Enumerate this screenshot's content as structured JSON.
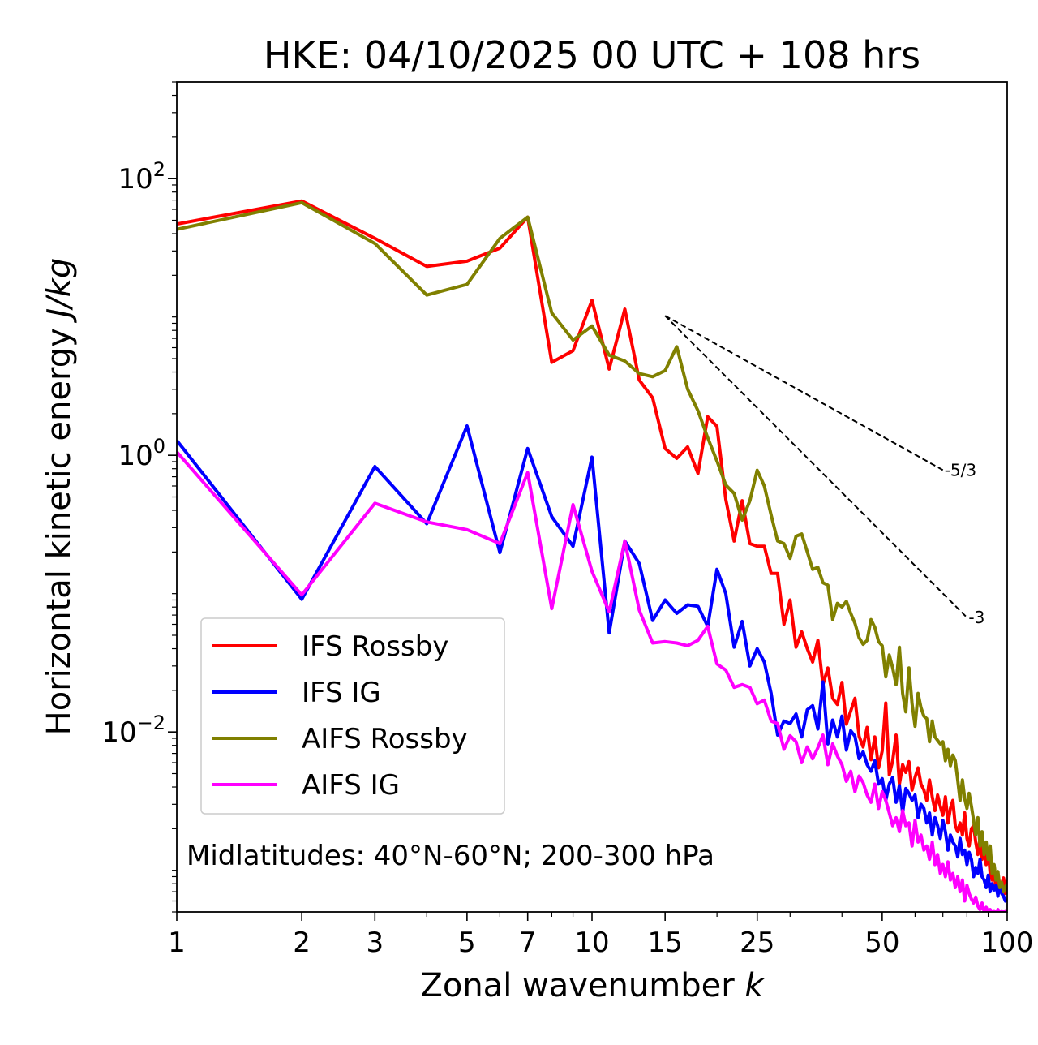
{
  "chart_data": {
    "type": "line",
    "title": "HKE: 04/10/2025 00 UTC + 108 hrs",
    "xlabel": "Zonal wavenumber k",
    "ylabel": "Horizontal kinetic energy J/kg",
    "xscale": "log",
    "yscale": "log",
    "xlim": [
      1,
      100
    ],
    "ylim": [
      0.0005,
      500
    ],
    "xticks": [
      {
        "value": 1,
        "label": "1"
      },
      {
        "value": 2,
        "label": "2"
      },
      {
        "value": 3,
        "label": "3"
      },
      {
        "value": 5,
        "label": "5"
      },
      {
        "value": 7,
        "label": "7"
      },
      {
        "value": 10,
        "label": "10"
      },
      {
        "value": 15,
        "label": "15"
      },
      {
        "value": 25,
        "label": "25"
      },
      {
        "value": 50,
        "label": "50"
      },
      {
        "value": 100,
        "label": "100"
      }
    ],
    "yticks": [
      {
        "value": 100,
        "base": "10",
        "exp": "2"
      },
      {
        "value": 1,
        "base": "10",
        "exp": "0"
      },
      {
        "value": 0.01,
        "base": "10",
        "exp": "−2"
      }
    ],
    "legend_position": "lower-left",
    "annotation": "Midlatitudes: 40°N-60°N; 200-300 hPa",
    "reference_slopes": [
      {
        "label": "-5/3",
        "slope": -1.6667,
        "x_start": 15,
        "x_end": 70,
        "y_start": 10.2
      },
      {
        "label": "-3",
        "slope": -3,
        "x_start": 15,
        "x_end": 80,
        "y_start": 10.2
      }
    ],
    "series": [
      {
        "name": "IFS Rossby",
        "color": "#ff0000",
        "x": [
          1,
          2,
          3,
          4,
          5,
          6,
          7,
          8,
          9,
          10,
          11,
          12,
          13,
          14,
          15,
          16,
          17,
          18,
          19,
          20,
          21,
          22,
          23,
          24,
          25,
          26,
          27,
          28,
          29,
          30,
          31,
          32,
          33,
          34,
          35,
          36,
          37,
          38,
          39,
          40,
          41,
          42,
          43,
          44,
          45,
          46,
          47,
          48,
          49,
          50,
          51,
          52,
          53,
          54,
          55,
          56,
          57,
          58,
          59,
          60,
          61,
          62,
          63,
          64,
          65,
          66,
          67,
          68,
          69,
          70,
          71,
          72,
          73,
          74,
          75,
          76,
          77,
          78,
          79,
          80,
          81,
          82,
          83,
          84,
          85,
          86,
          87,
          88,
          89,
          90,
          91,
          92,
          93,
          94,
          95,
          96,
          97,
          98,
          99,
          100
        ],
        "y": [
          47,
          69,
          37,
          23.2,
          25.3,
          31.4,
          52.7,
          4.7,
          5.7,
          13.2,
          4.2,
          11.4,
          3.5,
          2.6,
          1.12,
          0.95,
          1.15,
          0.74,
          1.9,
          1.62,
          0.48,
          0.24,
          0.47,
          0.23,
          0.22,
          0.22,
          0.14,
          0.14,
          0.06,
          0.09,
          0.041,
          0.053,
          0.04,
          0.032,
          0.046,
          0.022,
          0.029,
          0.0175,
          0.0158,
          0.0228,
          0.0114,
          0.0142,
          0.0175,
          0.0093,
          0.0078,
          0.0108,
          0.0063,
          0.0092,
          0.0055,
          0.0073,
          0.0162,
          0.0049,
          0.0062,
          0.0095,
          0.0042,
          0.0058,
          0.0051,
          0.0061,
          0.0038,
          0.0047,
          0.0055,
          0.0042,
          0.0038,
          0.0032,
          0.0045,
          0.0034,
          0.0027,
          0.0035,
          0.0029,
          0.0025,
          0.0034,
          0.0022,
          0.0028,
          0.0032,
          0.0021,
          0.0019,
          0.0022,
          0.0018,
          0.0026,
          0.0017,
          0.0015,
          0.002,
          0.0021,
          0.0016,
          0.0013,
          0.0017,
          0.0012,
          0.0015,
          0.0011,
          0.0014,
          0.00095,
          0.00085,
          0.00095,
          0.00075,
          0.00085,
          0.00072,
          0.0008,
          0.00088,
          0.00068,
          0.00085
        ]
      },
      {
        "name": "IFS IG",
        "color": "#0000ff",
        "x": [
          1,
          2,
          3,
          4,
          5,
          6,
          7,
          8,
          9,
          10,
          11,
          12,
          13,
          14,
          15,
          16,
          17,
          18,
          19,
          20,
          21,
          22,
          23,
          24,
          25,
          26,
          27,
          28,
          29,
          30,
          31,
          32,
          33,
          34,
          35,
          36,
          37,
          38,
          39,
          40,
          41,
          42,
          43,
          44,
          45,
          46,
          47,
          48,
          49,
          50,
          51,
          52,
          53,
          54,
          55,
          56,
          57,
          58,
          59,
          60,
          61,
          62,
          63,
          64,
          65,
          66,
          67,
          68,
          69,
          70,
          71,
          72,
          73,
          74,
          75,
          76,
          77,
          78,
          79,
          80,
          81,
          82,
          83,
          84,
          85,
          86,
          87,
          88,
          89,
          90,
          91,
          92,
          93,
          94,
          95,
          96,
          97,
          98,
          99,
          100
        ],
        "y": [
          1.28,
          0.091,
          0.83,
          0.32,
          1.63,
          0.198,
          1.12,
          0.36,
          0.22,
          0.97,
          0.052,
          0.24,
          0.165,
          0.064,
          0.09,
          0.072,
          0.083,
          0.081,
          0.058,
          0.15,
          0.1,
          0.041,
          0.063,
          0.03,
          0.04,
          0.032,
          0.019,
          0.0095,
          0.012,
          0.0115,
          0.0135,
          0.0092,
          0.0145,
          0.0155,
          0.0105,
          0.023,
          0.0082,
          0.0122,
          0.0092,
          0.013,
          0.0074,
          0.0102,
          0.0093,
          0.0064,
          0.0072,
          0.0058,
          0.0052,
          0.0062,
          0.0042,
          0.0046,
          0.0032,
          0.0042,
          0.0047,
          0.0031,
          0.0041,
          0.0026,
          0.0039,
          0.0036,
          0.0032,
          0.0035,
          0.0024,
          0.003,
          0.0028,
          0.0022,
          0.0026,
          0.0018,
          0.0024,
          0.0021,
          0.0017,
          0.0023,
          0.0019,
          0.0014,
          0.0018,
          0.0016,
          0.0015,
          0.00125,
          0.0017,
          0.0013,
          0.0014,
          0.0011,
          0.00135,
          0.0012,
          0.0009,
          0.00105,
          0.00095,
          0.0012,
          0.0009,
          0.00085,
          0.00075,
          0.00092,
          0.0007,
          0.0008,
          0.00072,
          0.00078,
          0.00065,
          0.0008,
          0.00068,
          0.00065,
          0.0006,
          0.00062
        ]
      },
      {
        "name": "AIFS Rossby",
        "color": "#808000",
        "x": [
          1,
          2,
          3,
          4,
          5,
          6,
          7,
          8,
          9,
          10,
          11,
          12,
          13,
          14,
          15,
          16,
          17,
          18,
          19,
          20,
          21,
          22,
          23,
          24,
          25,
          26,
          27,
          28,
          29,
          30,
          31,
          32,
          33,
          34,
          35,
          36,
          37,
          38,
          39,
          40,
          41,
          42,
          43,
          44,
          45,
          46,
          47,
          48,
          49,
          50,
          51,
          52,
          53,
          54,
          55,
          56,
          57,
          58,
          59,
          60,
          61,
          62,
          63,
          64,
          65,
          66,
          67,
          68,
          69,
          70,
          71,
          72,
          73,
          74,
          75,
          76,
          77,
          78,
          79,
          80,
          81,
          82,
          83,
          84,
          85,
          86,
          87,
          88,
          89,
          90,
          91,
          92,
          93,
          94,
          95,
          96,
          97,
          98,
          99,
          100
        ],
        "y": [
          43,
          67,
          34,
          14.4,
          17.2,
          37,
          52.7,
          10.7,
          6.8,
          8.6,
          5.3,
          4.8,
          3.9,
          3.7,
          4.1,
          6.1,
          3.0,
          2.1,
          1.34,
          0.91,
          0.61,
          0.53,
          0.34,
          0.47,
          0.78,
          0.6,
          0.37,
          0.24,
          0.23,
          0.18,
          0.26,
          0.27,
          0.2,
          0.15,
          0.155,
          0.12,
          0.115,
          0.065,
          0.085,
          0.08,
          0.088,
          0.072,
          0.061,
          0.048,
          0.043,
          0.046,
          0.065,
          0.057,
          0.045,
          0.042,
          0.025,
          0.036,
          0.029,
          0.022,
          0.041,
          0.019,
          0.014,
          0.029,
          0.016,
          0.011,
          0.019,
          0.015,
          0.013,
          0.0125,
          0.0085,
          0.012,
          0.0092,
          0.0087,
          0.0082,
          0.0085,
          0.0062,
          0.0075,
          0.0057,
          0.0068,
          0.0062,
          0.0045,
          0.0032,
          0.0045,
          0.0033,
          0.0028,
          0.0036,
          0.0029,
          0.0023,
          0.0018,
          0.0024,
          0.0015,
          0.0019,
          0.0013,
          0.0016,
          0.0012,
          0.0015,
          0.00095,
          0.0011,
          0.00085,
          0.00098,
          0.00075,
          0.00082,
          0.0007,
          0.00076,
          0.0008
        ]
      },
      {
        "name": "AIFS IG",
        "color": "#ff00ff",
        "x": [
          1,
          2,
          3,
          4,
          5,
          6,
          7,
          8,
          9,
          10,
          11,
          12,
          13,
          14,
          15,
          16,
          17,
          18,
          19,
          20,
          21,
          22,
          23,
          24,
          25,
          26,
          27,
          28,
          29,
          30,
          31,
          32,
          33,
          34,
          35,
          36,
          37,
          38,
          39,
          40,
          41,
          42,
          43,
          44,
          45,
          46,
          47,
          48,
          49,
          50,
          51,
          52,
          53,
          54,
          55,
          56,
          57,
          58,
          59,
          60,
          61,
          62,
          63,
          64,
          65,
          66,
          67,
          68,
          69,
          70,
          71,
          72,
          73,
          74,
          75,
          76,
          77,
          78,
          79,
          80,
          81,
          82,
          83,
          84,
          85,
          86,
          87,
          88,
          89,
          90,
          91,
          92,
          93,
          94,
          95,
          96,
          97,
          98,
          99,
          100
        ],
        "y": [
          1.06,
          0.098,
          0.45,
          0.33,
          0.29,
          0.23,
          0.75,
          0.078,
          0.44,
          0.145,
          0.074,
          0.24,
          0.076,
          0.044,
          0.045,
          0.044,
          0.042,
          0.046,
          0.058,
          0.031,
          0.028,
          0.021,
          0.022,
          0.021,
          0.016,
          0.017,
          0.012,
          0.0115,
          0.0075,
          0.0094,
          0.0085,
          0.006,
          0.0078,
          0.0064,
          0.0077,
          0.0095,
          0.0058,
          0.0082,
          0.0067,
          0.0058,
          0.0044,
          0.0052,
          0.0037,
          0.0048,
          0.0043,
          0.0035,
          0.0031,
          0.0042,
          0.0028,
          0.0037,
          0.0032,
          0.0026,
          0.0021,
          0.0024,
          0.0019,
          0.0027,
          0.0021,
          0.0022,
          0.0015,
          0.0023,
          0.0016,
          0.0018,
          0.0014,
          0.0015,
          0.0012,
          0.0016,
          0.0011,
          0.0013,
          0.00095,
          0.0011,
          0.0009,
          0.00115,
          0.00085,
          0.00095,
          0.00075,
          0.0009,
          0.0007,
          0.00085,
          0.0006,
          0.00078,
          0.00068,
          0.00062,
          0.00058,
          0.00064,
          0.00055,
          0.00052,
          0.00058,
          0.0005,
          0.00054,
          0.0005,
          0.00052,
          0.0005,
          0.00051,
          0.0005,
          0.00052,
          0.0005,
          0.00051,
          0.0005,
          0.00051,
          0.0005
        ]
      }
    ]
  }
}
